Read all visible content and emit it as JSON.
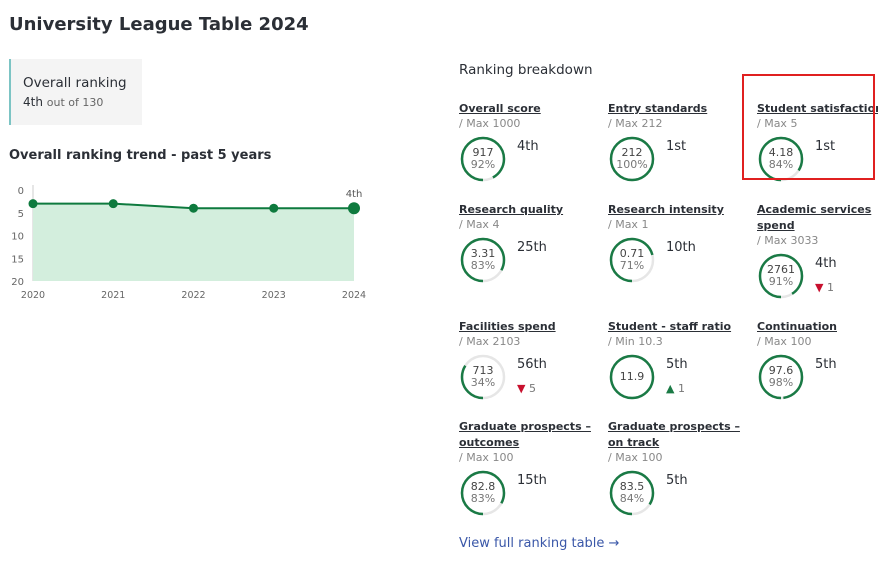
{
  "page_title": "University League Table 2024",
  "overall_ranking": {
    "label": "Overall ranking",
    "position": "4th",
    "suffix": "out of 130"
  },
  "trend": {
    "title": "Overall ranking trend - past 5 years"
  },
  "chart_data": {
    "type": "area",
    "x": [
      "2020",
      "2021",
      "2022",
      "2023",
      "2024"
    ],
    "values": [
      3,
      3,
      4,
      4,
      4
    ],
    "ylim": [
      0,
      20
    ],
    "y_inverted": true,
    "yticks": [
      "0",
      "5",
      "10",
      "15",
      "20"
    ],
    "last_label": "4th",
    "line_color": "#0e7a3e",
    "fill_color": "#d3eedd"
  },
  "breakdown": {
    "title": "Ranking breakdown",
    "link": "View full ranking table",
    "link_arrow": "→",
    "items": [
      {
        "title": "Overall score",
        "sub": "/ Max 1000",
        "value": "917",
        "pct": "92%",
        "fill": 92,
        "rank": "4th"
      },
      {
        "title": "Entry standards",
        "sub": "/ Max 212",
        "value": "212",
        "pct": "100%",
        "fill": 100,
        "rank": "1st"
      },
      {
        "title": "Student satisfaction",
        "sub": "/ Max 5",
        "value": "4.18",
        "pct": "84%",
        "fill": 84,
        "rank": "1st"
      },
      {
        "title": "Research quality",
        "sub": "/ Max 4",
        "value": "3.31",
        "pct": "83%",
        "fill": 83,
        "rank": "25th"
      },
      {
        "title": "Research intensity",
        "sub": "/ Max 1",
        "value": "0.71",
        "pct": "71%",
        "fill": 71,
        "rank": "10th"
      },
      {
        "title": "Academic services spend",
        "sub": "/ Max 3033",
        "value": "2761",
        "pct": "91%",
        "fill": 91,
        "rank": "4th",
        "change": "1",
        "change_dir": "down"
      },
      {
        "title": "Facilities spend",
        "sub": "/ Max 2103",
        "value": "713",
        "pct": "34%",
        "fill": 34,
        "rank": "56th",
        "change": "5",
        "change_dir": "down"
      },
      {
        "title": "Student - staff ratio",
        "sub": "/ Min 10.3",
        "value": "11.9",
        "fill": 100,
        "rank": "5th",
        "change": "1",
        "change_dir": "up"
      },
      {
        "title": "Continuation",
        "sub": "/ Max 100",
        "value": "97.6",
        "pct": "98%",
        "fill": 98,
        "rank": "5th"
      },
      {
        "title": "Graduate prospects – outcomes",
        "sub": "/ Max 100",
        "value": "82.8",
        "pct": "83%",
        "fill": 83,
        "rank": "15th"
      },
      {
        "title": "Graduate prospects – on track",
        "sub": "/ Max 100",
        "value": "83.5",
        "pct": "84%",
        "fill": 84,
        "rank": "5th"
      }
    ]
  }
}
